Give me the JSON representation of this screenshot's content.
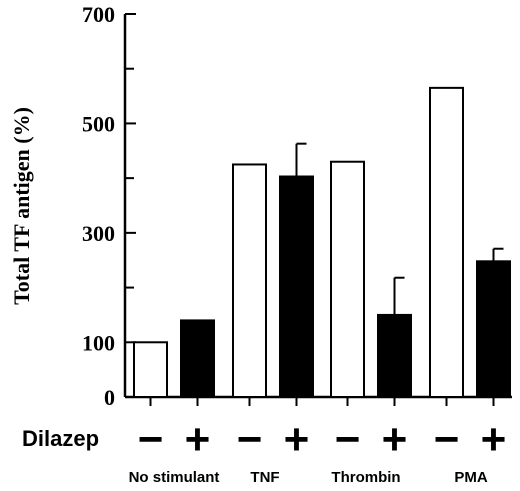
{
  "chart_data": {
    "type": "bar",
    "title": "",
    "ylabel": "Total TF antigen (%)",
    "xlabel": "",
    "ylim": [
      0,
      700
    ],
    "yticks": [
      0,
      100,
      300,
      500,
      700
    ],
    "y_minor_ticks": [
      200,
      400,
      600
    ],
    "grid": false,
    "row_label": "Dilazep",
    "categories": [
      "No stimulant",
      "TNF",
      "Thrombin",
      "PMA"
    ],
    "series": [
      {
        "dilazep": "−",
        "fill": "#ffffff",
        "values": [
          100,
          425,
          430,
          565
        ],
        "errors": [
          0,
          0,
          0,
          0
        ]
      },
      {
        "dilazep": "+",
        "fill": "#000000",
        "values": [
          140,
          403,
          150,
          248
        ],
        "errors": [
          0,
          60,
          68,
          23
        ]
      }
    ]
  }
}
